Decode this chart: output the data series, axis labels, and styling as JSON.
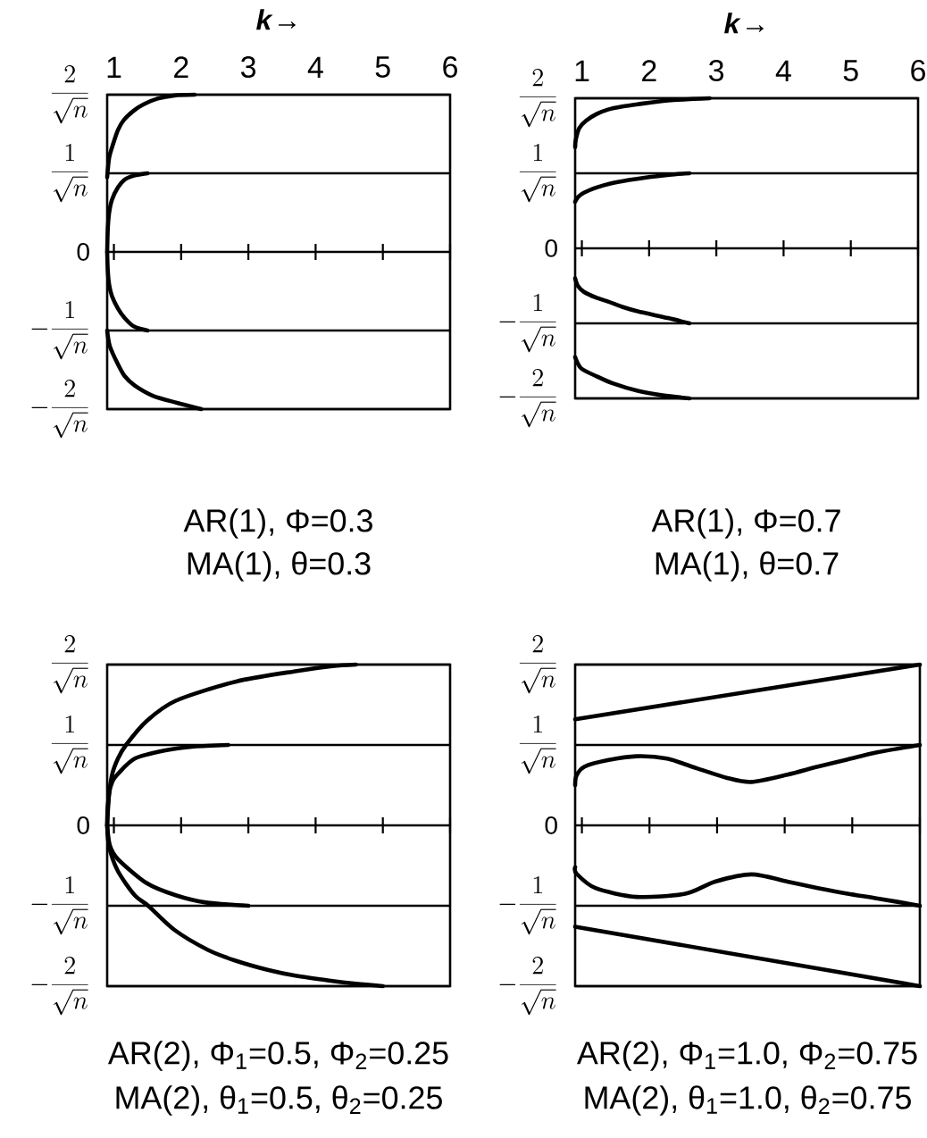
{
  "chart_data": [
    {
      "type": "line",
      "xlabel": "*k*→",
      "annotations": [
        "AR(1), Φ=0.3",
        "MA(1), θ=0.3"
      ],
      "xlim": [
        0.9,
        6
      ],
      "ylim": [
        -2,
        2
      ],
      "xticks": [
        1,
        2,
        3,
        4,
        5,
        6
      ],
      "yticks": [
        {
          "value": -2,
          "label": "-\\frac{2}{\\sqrt{n}}"
        },
        {
          "value": -1,
          "label": "-\\frac{1}{\\sqrt{n}}"
        },
        0,
        {
          "value": 1,
          "label": "\\frac{1}{\\sqrt{n}}"
        },
        {
          "value": 2,
          "label": "\\frac{2}{\\sqrt{n}}"
        }
      ],
      "grid": "y",
      "series": [
        {
          "color": "#000000",
          "x": [
            0.9,
            0.93,
            0.98,
            1.06,
            1.15,
            1.3,
            1.45,
            1.65,
            1.9,
            2.2
          ],
          "values": [
            0.95,
            1.2,
            1.35,
            1.55,
            1.68,
            1.8,
            1.88,
            1.95,
            1.99,
            2.0
          ]
        },
        {
          "color": "#000000",
          "x": [
            0.9,
            0.91,
            0.93,
            0.97,
            1.06,
            1.16,
            1.3,
            1.5
          ],
          "values": [
            0,
            0.3,
            0.5,
            0.66,
            0.82,
            0.92,
            0.97,
            1.0
          ]
        },
        {
          "color": "#000000",
          "x": [
            0.9,
            0.91,
            0.93,
            0.97,
            1.06,
            1.16,
            1.3,
            1.5
          ],
          "values": [
            0,
            -0.25,
            -0.42,
            -0.56,
            -0.72,
            -0.84,
            -0.95,
            -1.0
          ]
        },
        {
          "color": "#000000",
          "x": [
            0.9,
            0.94,
            1.06,
            1.16,
            1.31,
            1.58,
            1.94,
            2.3
          ],
          "values": [
            -1.0,
            -1.2,
            -1.43,
            -1.58,
            -1.7,
            -1.83,
            -1.92,
            -2.0
          ]
        }
      ]
    },
    {
      "type": "line",
      "xlabel": "*k*→",
      "annotations": [
        "AR(1), Φ=0.7",
        "MA(1), θ=0.7"
      ],
      "xlim": [
        0.9,
        6
      ],
      "ylim": [
        -2,
        2
      ],
      "xticks": [
        1,
        2,
        3,
        4,
        5,
        6
      ],
      "yticks": [
        {
          "value": -2,
          "label": "-\\frac{2}{\\sqrt{n}}"
        },
        {
          "value": -1,
          "label": "-\\frac{1}{\\sqrt{n}}"
        },
        0,
        {
          "value": 1,
          "label": "\\frac{1}{\\sqrt{n}}"
        },
        {
          "value": 2,
          "label": "\\frac{2}{\\sqrt{n}}"
        }
      ],
      "grid": "y",
      "series": [
        {
          "color": "#000000",
          "x": [
            0.9,
            0.91,
            0.96,
            1.06,
            1.22,
            1.39,
            1.6,
            1.83,
            2.28,
            2.9
          ],
          "values": [
            1.35,
            1.45,
            1.6,
            1.7,
            1.79,
            1.85,
            1.89,
            1.92,
            1.97,
            2.0
          ]
        },
        {
          "color": "#000000",
          "x": [
            0.9,
            0.94,
            1.03,
            1.22,
            1.41,
            1.7,
            2.0,
            2.3,
            2.6
          ],
          "values": [
            0.62,
            0.68,
            0.74,
            0.81,
            0.86,
            0.91,
            0.95,
            0.98,
            1.0
          ]
        },
        {
          "color": "#000000",
          "x": [
            0.9,
            0.94,
            1.03,
            1.22,
            1.39,
            1.6,
            1.83,
            2.28,
            2.6
          ],
          "values": [
            -0.4,
            -0.5,
            -0.58,
            -0.66,
            -0.71,
            -0.78,
            -0.84,
            -0.93,
            -1.0
          ]
        },
        {
          "color": "#000000",
          "x": [
            0.9,
            0.99,
            1.23,
            1.46,
            1.83,
            2.2,
            2.6
          ],
          "values": [
            -1.45,
            -1.6,
            -1.71,
            -1.8,
            -1.9,
            -1.96,
            -2.0
          ]
        }
      ]
    },
    {
      "type": "line",
      "annotations": [
        "AR(2), Φ$_{1}$=0.5, Φ$_{2}$=0.25",
        "MA(2), θ$_{1}$=0.5, θ$_{2}$=0.25"
      ],
      "xlim": [
        0.9,
        6
      ],
      "ylim": [
        -2,
        2
      ],
      "xticks": [
        1,
        2,
        3,
        4,
        5,
        6
      ],
      "yticks": [
        {
          "value": -2,
          "label": "-\\frac{2}{\\sqrt{n}}"
        },
        {
          "value": -1,
          "label": "-\\frac{1}{\\sqrt{n}}"
        },
        0,
        {
          "value": 1,
          "label": "\\frac{1}{\\sqrt{n}}"
        },
        {
          "value": 2,
          "label": "\\frac{2}{\\sqrt{n}}"
        }
      ],
      "grid": "y",
      "tick_labels": "y",
      "series": [
        {
          "color": "#000000",
          "x": [
            0.9,
            0.91,
            0.97,
            1.06,
            1.18,
            1.49,
            1.92,
            2.82,
            3.72,
            4.25,
            4.6
          ],
          "values": [
            0,
            0.25,
            0.62,
            0.83,
            1.0,
            1.3,
            1.55,
            1.79,
            1.92,
            1.98,
            2.0
          ]
        },
        {
          "color": "#000000",
          "x": [
            0.9,
            0.93,
            0.98,
            1.06,
            1.31,
            1.75,
            2.19,
            2.7
          ],
          "values": [
            0,
            0.4,
            0.55,
            0.64,
            0.83,
            0.93,
            0.98,
            1.0
          ]
        },
        {
          "color": "#000000",
          "x": [
            0.9,
            0.94,
            1.06,
            1.49,
            1.92,
            2.37,
            3.0
          ],
          "values": [
            0,
            -0.25,
            -0.42,
            -0.72,
            -0.87,
            -0.96,
            -1.0
          ]
        },
        {
          "color": "#000000",
          "x": [
            0.9,
            0.93,
            1.06,
            1.31,
            1.51,
            1.9,
            2.4,
            2.8,
            3.3,
            3.7,
            4.2,
            4.6,
            5.0
          ],
          "values": [
            0,
            -0.27,
            -0.57,
            -0.87,
            -1.0,
            -1.3,
            -1.55,
            -1.68,
            -1.8,
            -1.87,
            -1.93,
            -1.97,
            -2.0
          ]
        }
      ]
    },
    {
      "type": "line",
      "annotations": [
        "AR(2), Φ$_{1}$=1.0, Φ$_{2}$=0.75",
        "MA(2), θ$_{1}$=1.0, θ$_{2}$=0.75"
      ],
      "xlim": [
        0.9,
        6
      ],
      "ylim": [
        -2,
        2
      ],
      "xticks": [
        1,
        2,
        3,
        4,
        5,
        6
      ],
      "yticks": [
        {
          "value": -2,
          "label": "-\\frac{2}{\\sqrt{n}}"
        },
        {
          "value": -1,
          "label": "-\\frac{1}{\\sqrt{n}}"
        },
        0,
        {
          "value": 1,
          "label": "\\frac{1}{\\sqrt{n}}"
        },
        {
          "value": 2,
          "label": "\\frac{2}{\\sqrt{n}}"
        }
      ],
      "grid": "y",
      "tick_labels": "y",
      "series": [
        {
          "color": "#000000",
          "x": [
            0.9,
            6
          ],
          "values": [
            1.32,
            2.0
          ]
        },
        {
          "color": "#000000",
          "x": [
            0.9,
            0.92,
            1.04,
            1.38,
            1.81,
            2.26,
            2.7,
            3.15,
            3.51,
            4.04,
            4.49,
            4.93,
            5.38,
            6
          ],
          "values": [
            0.5,
            0.62,
            0.73,
            0.81,
            0.86,
            0.83,
            0.71,
            0.59,
            0.54,
            0.63,
            0.73,
            0.82,
            0.91,
            1.0
          ]
        },
        {
          "color": "#000000",
          "x": [
            0.9,
            0.92,
            1.2,
            1.81,
            2.53,
            2.97,
            3.51,
            4.04,
            4.49,
            4.93,
            5.38,
            6
          ],
          "values": [
            -0.52,
            -0.6,
            -0.78,
            -0.89,
            -0.85,
            -0.7,
            -0.61,
            -0.7,
            -0.78,
            -0.85,
            -0.91,
            -1.0
          ]
        },
        {
          "color": "#000000",
          "x": [
            0.9,
            6
          ],
          "values": [
            -1.26,
            -2.0
          ]
        }
      ]
    }
  ]
}
